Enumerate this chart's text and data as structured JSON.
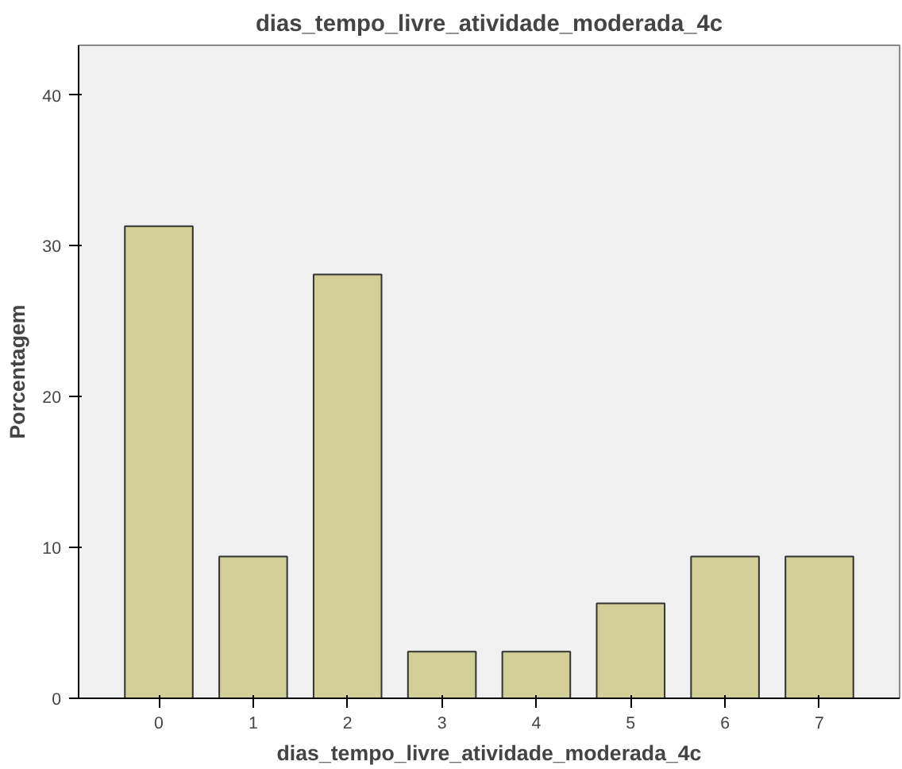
{
  "chart_data": {
    "type": "bar",
    "title": "dias_tempo_livre_atividade_moderada_4c",
    "xlabel": "dias_tempo_livre_atividade_moderada_4c",
    "ylabel": "Porcentagem",
    "categories": [
      "0",
      "1",
      "2",
      "3",
      "4",
      "5",
      "6",
      "7"
    ],
    "values": [
      31.3,
      9.4,
      28.1,
      3.1,
      3.1,
      6.3,
      9.4,
      9.4
    ],
    "color": "#d3ce97",
    "ylim": [
      0,
      43.3
    ],
    "yticks": [
      0,
      10,
      20,
      30,
      40
    ],
    "grid": false
  }
}
